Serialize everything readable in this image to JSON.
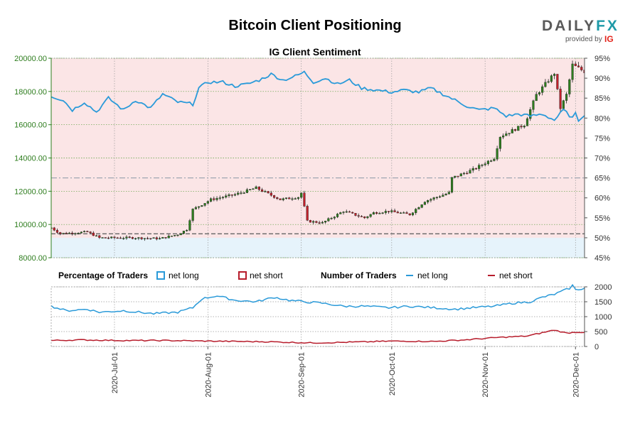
{
  "chart_data": {
    "type": "candlestick-sentiment",
    "title": "Bitcoin Client Positioning",
    "subtitle": "IG Client Sentiment",
    "brand": {
      "name_a": "DAILY",
      "name_b": "FX",
      "provided_by": "provided by",
      "partner": "IG"
    },
    "colors": {
      "net_long": "#2a9ad9",
      "net_short": "#b71c2b",
      "bull_candle": "#2e7d1e",
      "bear_candle": "#c0202a",
      "long_zone": "#e6f3fb",
      "short_zone": "#fbe5e6",
      "price_axis": "#2e7d1e"
    },
    "price_axis": {
      "min": 8000,
      "max": 20000,
      "ticks": [
        "8000.00",
        "10000.00",
        "12000.00",
        "14000.00",
        "16000.00",
        "18000.00",
        "20000.00"
      ]
    },
    "pct_axis": {
      "min": 45,
      "max": 95,
      "ticks": [
        "45%",
        "50%",
        "55%",
        "60%",
        "65%",
        "70%",
        "75%",
        "80%",
        "85%",
        "90%",
        "95%"
      ]
    },
    "count_axis": {
      "min": 0,
      "max": 2000,
      "ticks": [
        "0",
        "500",
        "1000",
        "1500",
        "2000"
      ]
    },
    "x_axis": {
      "start": "2020-06-10",
      "end": "2020-12-04",
      "ticks": [
        {
          "date": "2020-07-01",
          "label": "2020-Jul-01"
        },
        {
          "date": "2020-08-01",
          "label": "2020-Aug-01"
        },
        {
          "date": "2020-09-01",
          "label": "2020-Sep-01"
        },
        {
          "date": "2020-10-01",
          "label": "2020-Oct-01"
        },
        {
          "date": "2020-11-01",
          "label": "2020-Nov-01"
        },
        {
          "date": "2020-12-01",
          "label": "2020-Dec-01"
        }
      ]
    },
    "legend": {
      "pct_heading": "Percentage of Traders",
      "count_heading": "Number of Traders",
      "net_long": "net long",
      "net_short": "net short"
    },
    "price_keypoints": [
      [
        "2020-06-10",
        9800
      ],
      [
        "2020-06-13",
        9450
      ],
      [
        "2020-06-22",
        9550
      ],
      [
        "2020-06-26",
        9200
      ],
      [
        "2020-07-07",
        9200
      ],
      [
        "2020-07-16",
        9150
      ],
      [
        "2020-07-22",
        9400
      ],
      [
        "2020-07-25",
        9700
      ],
      [
        "2020-07-27",
        10900
      ],
      [
        "2020-08-02",
        11500
      ],
      [
        "2020-08-10",
        11800
      ],
      [
        "2020-08-17",
        12200
      ],
      [
        "2020-08-25",
        11500
      ],
      [
        "2020-08-31",
        11650
      ],
      [
        "2020-09-01",
        11900
      ],
      [
        "2020-09-03",
        10200
      ],
      [
        "2020-09-08",
        10100
      ],
      [
        "2020-09-15",
        10800
      ],
      [
        "2020-09-22",
        10400
      ],
      [
        "2020-09-25",
        10700
      ],
      [
        "2020-09-30",
        10800
      ],
      [
        "2020-10-07",
        10600
      ],
      [
        "2020-10-12",
        11400
      ],
      [
        "2020-10-20",
        11900
      ],
      [
        "2020-10-21",
        12800
      ],
      [
        "2020-10-28",
        13300
      ],
      [
        "2020-11-04",
        14000
      ],
      [
        "2020-11-06",
        15300
      ],
      [
        "2020-11-14",
        16000
      ],
      [
        "2020-11-18",
        17800
      ],
      [
        "2020-11-24",
        19100
      ],
      [
        "2020-11-26",
        17000
      ],
      [
        "2020-11-28",
        17800
      ],
      [
        "2020-11-30",
        19600
      ],
      [
        "2020-12-04",
        19200
      ]
    ],
    "long_pct_keypoints": [
      [
        "2020-06-10",
        85.5
      ],
      [
        "2020-06-14",
        84.5
      ],
      [
        "2020-06-17",
        82
      ],
      [
        "2020-06-21",
        84
      ],
      [
        "2020-06-25",
        81.5
      ],
      [
        "2020-06-29",
        85
      ],
      [
        "2020-07-04",
        82
      ],
      [
        "2020-07-08",
        84.5
      ],
      [
        "2020-07-13",
        82.5
      ],
      [
        "2020-07-17",
        86
      ],
      [
        "2020-07-22",
        84
      ],
      [
        "2020-07-27",
        83.5
      ],
      [
        "2020-07-29",
        87.5
      ],
      [
        "2020-08-01",
        89
      ],
      [
        "2020-08-06",
        89
      ],
      [
        "2020-08-10",
        88
      ],
      [
        "2020-08-14",
        88.5
      ],
      [
        "2020-08-18",
        89.5
      ],
      [
        "2020-08-22",
        91
      ],
      [
        "2020-08-26",
        89.5
      ],
      [
        "2020-08-30",
        90.5
      ],
      [
        "2020-09-02",
        91.5
      ],
      [
        "2020-09-05",
        89
      ],
      [
        "2020-09-09",
        90
      ],
      [
        "2020-09-13",
        88.5
      ],
      [
        "2020-09-17",
        89.5
      ],
      [
        "2020-09-21",
        87.5
      ],
      [
        "2020-09-26",
        87
      ],
      [
        "2020-10-01",
        86.5
      ],
      [
        "2020-10-05",
        87
      ],
      [
        "2020-10-10",
        86.5
      ],
      [
        "2020-10-14",
        87.5
      ],
      [
        "2020-10-18",
        86
      ],
      [
        "2020-10-22",
        84.5
      ],
      [
        "2020-10-26",
        83
      ],
      [
        "2020-10-30",
        82
      ],
      [
        "2020-11-04",
        82.5
      ],
      [
        "2020-11-08",
        80.5
      ],
      [
        "2020-11-12",
        81
      ],
      [
        "2020-11-16",
        80.5
      ],
      [
        "2020-11-20",
        81
      ],
      [
        "2020-11-24",
        79.5
      ],
      [
        "2020-11-27",
        82
      ],
      [
        "2020-11-30",
        80
      ],
      [
        "2020-12-01",
        81
      ],
      [
        "2020-12-02",
        79.5
      ],
      [
        "2020-12-04",
        81
      ]
    ],
    "long_count_keypoints": [
      [
        "2020-06-10",
        1350
      ],
      [
        "2020-06-15",
        1200
      ],
      [
        "2020-06-22",
        1250
      ],
      [
        "2020-06-26",
        1150
      ],
      [
        "2020-07-04",
        1200
      ],
      [
        "2020-07-14",
        1100
      ],
      [
        "2020-07-22",
        1150
      ],
      [
        "2020-07-27",
        1300
      ],
      [
        "2020-07-30",
        1600
      ],
      [
        "2020-08-04",
        1700
      ],
      [
        "2020-08-10",
        1550
      ],
      [
        "2020-08-17",
        1500
      ],
      [
        "2020-08-23",
        1650
      ],
      [
        "2020-08-28",
        1550
      ],
      [
        "2020-09-02",
        1500
      ],
      [
        "2020-09-08",
        1450
      ],
      [
        "2020-09-15",
        1350
      ],
      [
        "2020-09-22",
        1350
      ],
      [
        "2020-09-30",
        1300
      ],
      [
        "2020-10-07",
        1350
      ],
      [
        "2020-10-15",
        1300
      ],
      [
        "2020-10-22",
        1250
      ],
      [
        "2020-10-28",
        1300
      ],
      [
        "2020-11-04",
        1350
      ],
      [
        "2020-11-10",
        1450
      ],
      [
        "2020-11-16",
        1500
      ],
      [
        "2020-11-20",
        1650
      ],
      [
        "2020-11-24",
        1750
      ],
      [
        "2020-11-29",
        1950
      ],
      [
        "2020-11-30",
        2050
      ],
      [
        "2020-12-01",
        1900
      ],
      [
        "2020-12-04",
        1950
      ]
    ],
    "short_count_keypoints": [
      [
        "2020-06-10",
        200
      ],
      [
        "2020-06-20",
        220
      ],
      [
        "2020-07-05",
        200
      ],
      [
        "2020-07-20",
        200
      ],
      [
        "2020-08-01",
        180
      ],
      [
        "2020-08-20",
        160
      ],
      [
        "2020-09-05",
        120
      ],
      [
        "2020-09-20",
        150
      ],
      [
        "2020-10-01",
        180
      ],
      [
        "2020-10-15",
        170
      ],
      [
        "2020-10-25",
        220
      ],
      [
        "2020-11-05",
        300
      ],
      [
        "2020-11-15",
        350
      ],
      [
        "2020-11-24",
        550
      ],
      [
        "2020-11-28",
        450
      ],
      [
        "2020-12-01",
        480
      ],
      [
        "2020-12-04",
        480
      ]
    ],
    "reference_levels": [
      {
        "pct": 65,
        "style": "dash-dot"
      },
      {
        "pct": 51,
        "style": "dashed"
      }
    ]
  }
}
